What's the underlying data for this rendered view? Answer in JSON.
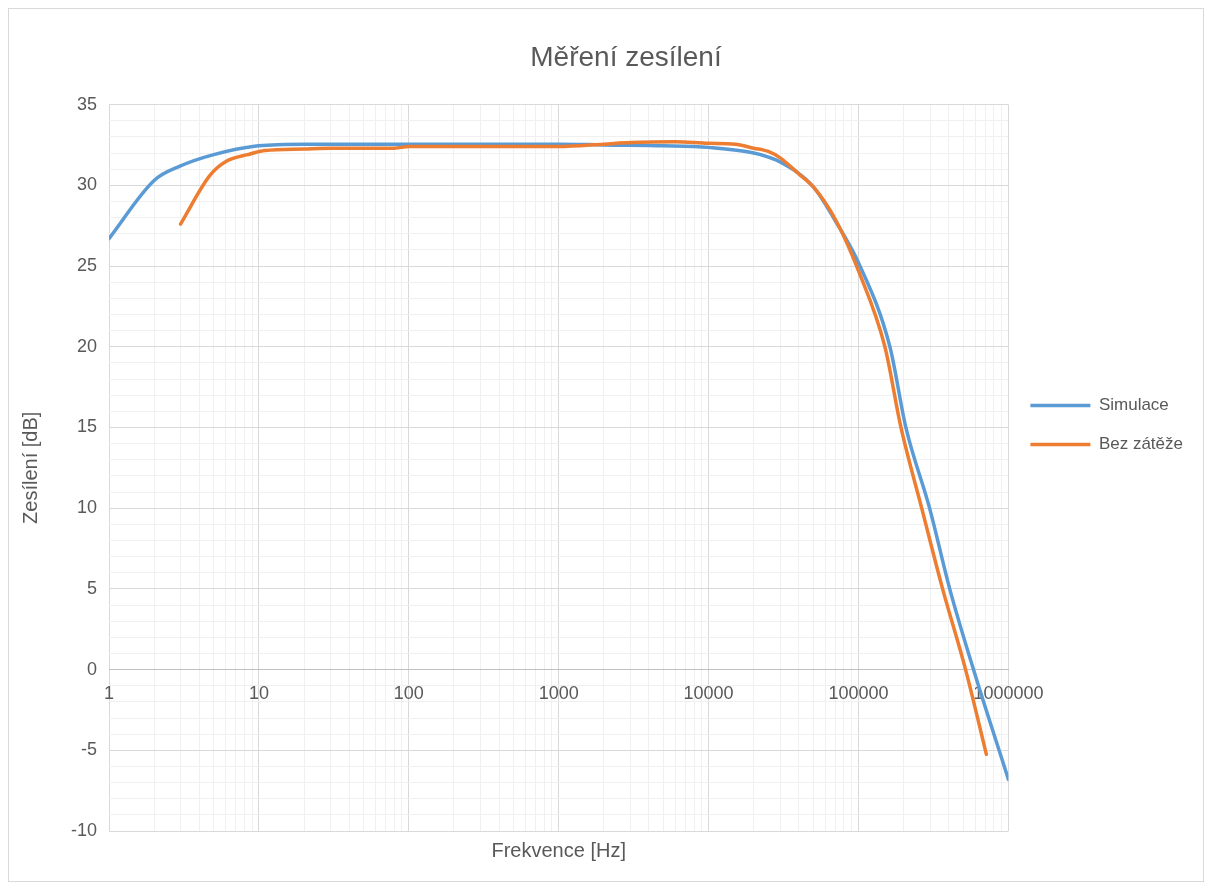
{
  "chart_data": {
    "type": "line",
    "title": "Měření zesílení",
    "xlabel": "Frekvence [Hz]",
    "ylabel": "Zesílení [dB]",
    "log": "x",
    "grid": true,
    "legend": "right",
    "line_style": "solid",
    "xlim": [
      1,
      1000000
    ],
    "ylim": [
      -10,
      35
    ],
    "xticks": [
      1,
      {
        "value": 2,
        "label": null
      },
      {
        "value": 3,
        "label": null
      },
      {
        "value": 4,
        "label": null
      },
      {
        "value": 5,
        "label": null
      },
      {
        "value": 6,
        "label": null
      },
      {
        "value": 7,
        "label": null
      },
      {
        "value": 8,
        "label": null
      },
      {
        "value": 9,
        "label": null
      },
      10,
      {
        "value": 20,
        "label": null
      },
      {
        "value": 30,
        "label": null
      },
      {
        "value": 40,
        "label": null
      },
      {
        "value": 50,
        "label": null
      },
      {
        "value": 60,
        "label": null
      },
      {
        "value": 70,
        "label": null
      },
      {
        "value": 80,
        "label": null
      },
      {
        "value": 90,
        "label": null
      },
      100,
      {
        "value": 200,
        "label": null
      },
      {
        "value": 300,
        "label": null
      },
      {
        "value": 400,
        "label": null
      },
      {
        "value": 500,
        "label": null
      },
      {
        "value": 600,
        "label": null
      },
      {
        "value": 700,
        "label": null
      },
      {
        "value": 800,
        "label": null
      },
      {
        "value": 900,
        "label": null
      },
      1000,
      {
        "value": 2000,
        "label": null
      },
      {
        "value": 3000,
        "label": null
      },
      {
        "value": 4000,
        "label": null
      },
      {
        "value": 5000,
        "label": null
      },
      {
        "value": 6000,
        "label": null
      },
      {
        "value": 7000,
        "label": null
      },
      {
        "value": 8000,
        "label": null
      },
      {
        "value": 9000,
        "label": null
      },
      10000,
      {
        "value": 20000,
        "label": null
      },
      {
        "value": 30000,
        "label": null
      },
      {
        "value": 40000,
        "label": null
      },
      {
        "value": 50000,
        "label": null
      },
      {
        "value": 60000,
        "label": null
      },
      {
        "value": 70000,
        "label": null
      },
      {
        "value": 80000,
        "label": null
      },
      {
        "value": 90000,
        "label": null
      },
      100000,
      {
        "value": 200000,
        "label": null
      },
      {
        "value": 300000,
        "label": null
      },
      {
        "value": 400000,
        "label": null
      },
      {
        "value": 500000,
        "label": null
      },
      {
        "value": 600000,
        "label": null
      },
      {
        "value": 700000,
        "label": null
      },
      {
        "value": 800000,
        "label": null
      },
      {
        "value": 900000,
        "label": null
      },
      1000000
    ],
    "yticks": [
      -10,
      {
        "value": -9,
        "label": null
      },
      {
        "value": -8,
        "label": null
      },
      {
        "value": -7,
        "label": null
      },
      {
        "value": -6,
        "label": null
      },
      -5,
      {
        "value": -4,
        "label": null
      },
      {
        "value": -3,
        "label": null
      },
      {
        "value": -2,
        "label": null
      },
      {
        "value": -1,
        "label": null
      },
      0,
      {
        "value": 1,
        "label": null
      },
      {
        "value": 2,
        "label": null
      },
      {
        "value": 3,
        "label": null
      },
      {
        "value": 4,
        "label": null
      },
      5,
      {
        "value": 6,
        "label": null
      },
      {
        "value": 7,
        "label": null
      },
      {
        "value": 8,
        "label": null
      },
      {
        "value": 9,
        "label": null
      },
      10,
      {
        "value": 11,
        "label": null
      },
      {
        "value": 12,
        "label": null
      },
      {
        "value": 13,
        "label": null
      },
      {
        "value": 14,
        "label": null
      },
      15,
      {
        "value": 16,
        "label": null
      },
      {
        "value": 17,
        "label": null
      },
      {
        "value": 18,
        "label": null
      },
      {
        "value": 19,
        "label": null
      },
      20,
      {
        "value": 21,
        "label": null
      },
      {
        "value": 22,
        "label": null
      },
      {
        "value": 23,
        "label": null
      },
      {
        "value": 24,
        "label": null
      },
      25,
      {
        "value": 26,
        "label": null
      },
      {
        "value": 27,
        "label": null
      },
      {
        "value": 28,
        "label": null
      },
      {
        "value": 29,
        "label": null
      },
      30,
      {
        "value": 31,
        "label": null
      },
      {
        "value": 32,
        "label": null
      },
      {
        "value": 33,
        "label": null
      },
      {
        "value": 34,
        "label": null
      },
      35
    ],
    "series": [
      {
        "name": "Simulace",
        "color": "#5b9bd5",
        "x": [
          1,
          2,
          3,
          5,
          10,
          20,
          50,
          100,
          200,
          500,
          1000,
          2000,
          5000,
          10000,
          20000,
          30000,
          50000,
          70000,
          100000,
          162000,
          207000,
          298000,
          406000,
          585000,
          1000000
        ],
        "values": [
          26.7,
          30.3,
          31.2,
          31.9,
          32.45,
          32.55,
          32.55,
          32.55,
          32.55,
          32.55,
          32.55,
          32.5,
          32.45,
          32.35,
          32.0,
          31.45,
          29.9,
          27.8,
          25.2,
          20,
          15,
          10,
          5,
          0,
          -6.8
        ]
      },
      {
        "name": "Bez zátěže",
        "color": "#ed7d31",
        "x": [
          3,
          4.7,
          6.1,
          8.4,
          11,
          20,
          30,
          80,
          100,
          1000,
          2000,
          3000,
          6000,
          10000,
          15000,
          20000,
          25000,
          30000,
          40000,
          50000,
          70000,
          100000,
          150000,
          192000,
          264000,
          364000,
          518000,
          713000
        ],
        "values": [
          27.6,
          30.6,
          31.5,
          31.9,
          32.15,
          32.25,
          32.3,
          32.3,
          32.4,
          32.4,
          32.55,
          32.65,
          32.7,
          32.6,
          32.55,
          32.3,
          32.1,
          31.7,
          30.7,
          29.9,
          27.9,
          24.7,
          20,
          15,
          10,
          5,
          0,
          -5.25
        ]
      }
    ]
  }
}
